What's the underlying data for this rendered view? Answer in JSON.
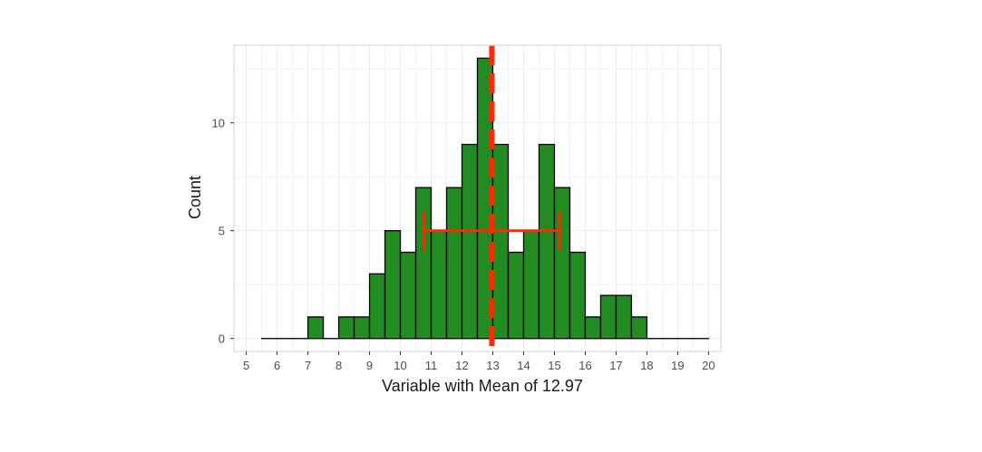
{
  "chart_data": {
    "type": "bar",
    "subtype": "histogram",
    "xlabel": "Variable with Mean of 12.97",
    "ylabel": "Count",
    "xlim": [
      4.6,
      20.4
    ],
    "ylim": [
      -0.6,
      13.6
    ],
    "x_ticks": [
      5,
      6,
      7,
      8,
      9,
      10,
      11,
      12,
      13,
      14,
      15,
      16,
      17,
      18,
      19,
      20
    ],
    "y_ticks": [
      0,
      5,
      10
    ],
    "bin_width": 0.5,
    "bins": [
      {
        "x": 5.75,
        "count": 0
      },
      {
        "x": 6.25,
        "count": 0
      },
      {
        "x": 6.75,
        "count": 0
      },
      {
        "x": 7.25,
        "count": 1
      },
      {
        "x": 7.75,
        "count": 0
      },
      {
        "x": 8.25,
        "count": 1
      },
      {
        "x": 8.75,
        "count": 1
      },
      {
        "x": 9.25,
        "count": 3
      },
      {
        "x": 9.75,
        "count": 5
      },
      {
        "x": 10.25,
        "count": 4
      },
      {
        "x": 10.75,
        "count": 7
      },
      {
        "x": 11.25,
        "count": 5
      },
      {
        "x": 11.75,
        "count": 7
      },
      {
        "x": 12.25,
        "count": 9
      },
      {
        "x": 12.75,
        "count": 13
      },
      {
        "x": 13.25,
        "count": 9
      },
      {
        "x": 13.75,
        "count": 4
      },
      {
        "x": 14.25,
        "count": 5
      },
      {
        "x": 14.75,
        "count": 9
      },
      {
        "x": 15.25,
        "count": 7
      },
      {
        "x": 15.75,
        "count": 4
      },
      {
        "x": 16.25,
        "count": 1
      },
      {
        "x": 16.75,
        "count": 2
      },
      {
        "x": 17.25,
        "count": 2
      },
      {
        "x": 17.75,
        "count": 1
      },
      {
        "x": 18.25,
        "count": 0
      },
      {
        "x": 18.75,
        "count": 0
      },
      {
        "x": 19.25,
        "count": 0
      },
      {
        "x": 19.75,
        "count": 0
      }
    ],
    "mean_line": {
      "x": 12.97,
      "style": "dashed"
    },
    "error_bar": {
      "y": 5,
      "xmin": 10.77,
      "xmax": 15.17
    },
    "grid": true,
    "colors": {
      "bar_fill": "#228b22",
      "bar_edge": "#000000",
      "mean_line": "#ff2a00",
      "error_bar": "#ff2a00",
      "grid": "#ebebeb",
      "panel_border": "#d9d9d9"
    }
  }
}
